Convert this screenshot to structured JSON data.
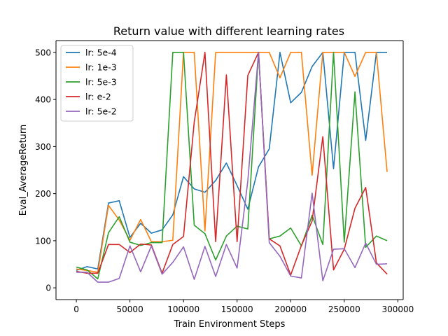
{
  "chart_data": {
    "type": "line",
    "title": "Return value with different learning rates",
    "xlabel": "Train Environment Steps",
    "ylabel": "Eval_AverageReturn",
    "xlim": [
      -19000,
      305000
    ],
    "ylim": [
      -25,
      525
    ],
    "xticks": [
      0,
      50000,
      100000,
      150000,
      200000,
      250000,
      300000
    ],
    "xtick_labels": [
      "0",
      "50000",
      "100000",
      "150000",
      "200000",
      "250000",
      "300000"
    ],
    "yticks": [
      0,
      100,
      200,
      300,
      400,
      500
    ],
    "ytick_labels": [
      "0",
      "100",
      "200",
      "300",
      "400",
      "500"
    ],
    "grid": false,
    "legend_position": "top-left",
    "x": [
      0,
      10000,
      20000,
      30000,
      40000,
      50000,
      60000,
      70000,
      80000,
      90000,
      100000,
      110000,
      120000,
      130000,
      140000,
      150000,
      160000,
      170000,
      180000,
      190000,
      200000,
      210000,
      220000,
      230000,
      240000,
      250000,
      260000,
      270000,
      280000,
      290000
    ],
    "series": [
      {
        "name": "lr: 5e-4",
        "color": "#1f77b4",
        "values": [
          37,
          45,
          40,
          180,
          185,
          107,
          137,
          116,
          123,
          155,
          236,
          210,
          203,
          228,
          265,
          217,
          167,
          257,
          295,
          500,
          393,
          415,
          470,
          500,
          253,
          500,
          500,
          313,
          500,
          500
        ]
      },
      {
        "name": "lr: 1e-3",
        "color": "#ff7f0e",
        "values": [
          40,
          37,
          33,
          175,
          144,
          101,
          145,
          98,
          98,
          101,
          500,
          500,
          121,
          500,
          500,
          500,
          500,
          500,
          500,
          446,
          500,
          500,
          239,
          500,
          500,
          500,
          449,
          500,
          500,
          246
        ]
      },
      {
        "name": "lr: 5e-3",
        "color": "#2ca02c",
        "values": [
          44,
          38,
          19,
          117,
          151,
          97,
          90,
          96,
          96,
          500,
          500,
          133,
          115,
          59,
          110,
          131,
          125,
          500,
          104,
          110,
          127,
          89,
          154,
          92,
          500,
          97,
          416,
          86,
          110,
          100
        ]
      },
      {
        "name": "lr: e-2",
        "color": "#d62728",
        "values": [
          35,
          31,
          31,
          92,
          92,
          75,
          93,
          91,
          31,
          92,
          109,
          352,
          500,
          98,
          452,
          98,
          451,
          500,
          104,
          89,
          27,
          90,
          142,
          321,
          38,
          82,
          169,
          213,
          53,
          29
        ]
      },
      {
        "name": "lr: 5e-2",
        "color": "#9467bd",
        "values": [
          33,
          33,
          12,
          12,
          20,
          89,
          34,
          89,
          29,
          54,
          87,
          18,
          88,
          24,
          92,
          42,
          227,
          500,
          96,
          67,
          25,
          21,
          201,
          15,
          82,
          83,
          43,
          95,
          50,
          51
        ]
      }
    ]
  }
}
